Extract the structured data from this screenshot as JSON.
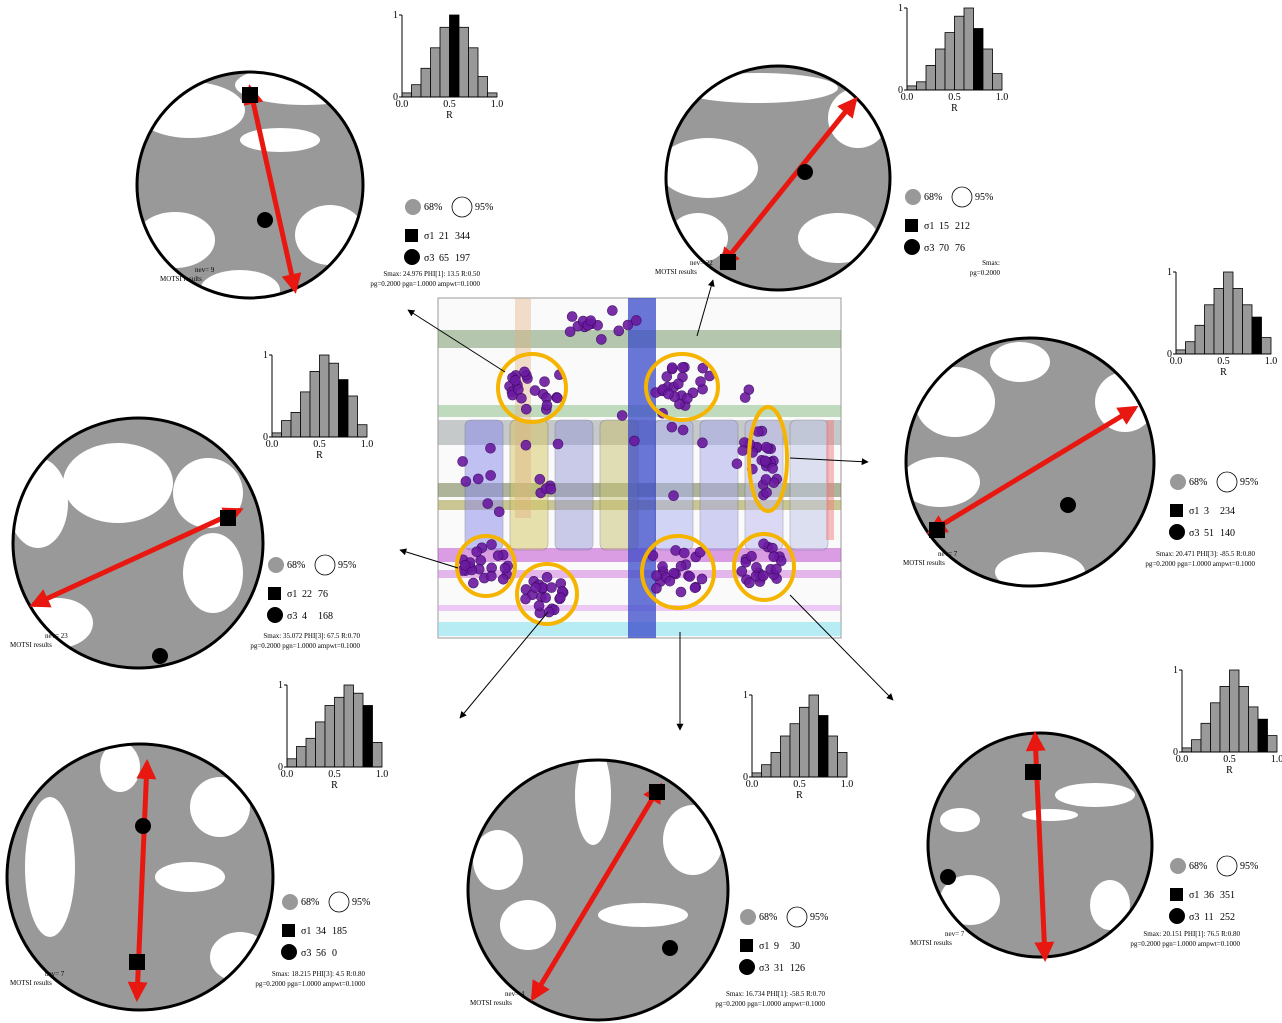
{
  "legend": [
    "68%",
    "95%"
  ],
  "histogram_axis": {
    "xticks": [
      "0.0",
      "0.5",
      "1.0"
    ],
    "xlabel": "R",
    "yticks": [
      0,
      1
    ]
  },
  "panels": [
    {
      "nev": "nev=    9",
      "source": "MOTSI results",
      "sigma1": {
        "symbol": "σ1",
        "plunge": 21,
        "trend": 344
      },
      "sigma3": {
        "symbol": "σ3",
        "plunge": 65,
        "trend": 197
      },
      "stats": "Smax:  24.976   PHI[1]:  13.5   R:0.50",
      "params": "pg=0.2000 pgn=1.0000 ampwt=0.1000",
      "histogram": {
        "counts": [
          0.05,
          0.15,
          0.35,
          0.6,
          0.85,
          1.0,
          0.85,
          0.6,
          0.25,
          0.05
        ],
        "highlight_bin": 5
      }
    },
    {
      "nev": "nev=    22",
      "source": "MOTSI results",
      "sigma1": {
        "symbol": "σ1",
        "plunge": 15,
        "trend": 212
      },
      "sigma3": {
        "symbol": "σ3",
        "plunge": 70,
        "trend": 76
      },
      "stats": "Smax:",
      "params": "pg=0.2000",
      "histogram": {
        "counts": [
          0.05,
          0.1,
          0.3,
          0.5,
          0.7,
          0.9,
          1.0,
          0.75,
          0.5,
          0.2
        ],
        "highlight_bin": 7
      }
    },
    {
      "nev": "nev=    7",
      "source": "MOTSI results",
      "sigma1": {
        "symbol": "σ1",
        "plunge": 3,
        "trend": 234
      },
      "sigma3": {
        "symbol": "σ3",
        "plunge": 51,
        "trend": 140
      },
      "stats": "Smax:  20.471   PHI[3]:  -85.5   R:0.80",
      "params": "pg=0.2000 pgn=1.0000 ampwt=0.1000",
      "histogram": {
        "counts": [
          0.05,
          0.15,
          0.35,
          0.6,
          0.8,
          1.0,
          0.8,
          0.6,
          0.45,
          0.2
        ],
        "highlight_bin": 8
      }
    },
    {
      "nev": "nev=    23",
      "source": "MOTSI results",
      "sigma1": {
        "symbol": "σ1",
        "plunge": 22,
        "trend": 76
      },
      "sigma3": {
        "symbol": "σ3",
        "plunge": 4,
        "trend": 168
      },
      "stats": "Smax:  35.072   PHI[3]:  67.5   R:0.70",
      "params": "pg=0.2000 pgn=1.0000 ampwt=0.1000",
      "histogram": {
        "counts": [
          0.05,
          0.2,
          0.3,
          0.55,
          0.8,
          1.0,
          0.9,
          0.7,
          0.5,
          0.15
        ],
        "highlight_bin": 7
      }
    },
    {
      "nev": "nev=    7",
      "source": "MOTSI results",
      "sigma1": {
        "symbol": "σ1",
        "plunge": 34,
        "trend": 185
      },
      "sigma3": {
        "symbol": "σ3",
        "plunge": 56,
        "trend": 0
      },
      "stats": "Smax:  18.215   PHI[3]:  4.5   R:0.80",
      "params": "pg=0.2000 pgn=1.0000 ampwt=0.1000",
      "histogram": {
        "counts": [
          0.1,
          0.25,
          0.35,
          0.55,
          0.75,
          0.85,
          1.0,
          0.9,
          0.75,
          0.3
        ],
        "highlight_bin": 8
      }
    },
    {
      "nev": "nev=    4",
      "source": "MOTSI results",
      "sigma1": {
        "symbol": "σ1",
        "plunge": 9,
        "trend": 30
      },
      "sigma3": {
        "symbol": "σ3",
        "plunge": 31,
        "trend": 126
      },
      "stats": "Smax:  16.734   PHI[1]:  -58.5   R:0.70",
      "params": "pg=0.2000 pgn=1.0000 ampwt=0.1000",
      "histogram": {
        "counts": [
          0.05,
          0.15,
          0.3,
          0.5,
          0.65,
          0.85,
          1.0,
          0.75,
          0.5,
          0.3
        ],
        "highlight_bin": 7
      }
    },
    {
      "nev": "nev=    7",
      "source": "MOTSI results",
      "sigma1": {
        "symbol": "σ1",
        "plunge": 36,
        "trend": 351
      },
      "sigma3": {
        "symbol": "σ3",
        "plunge": 11,
        "trend": 252
      },
      "stats": "Smax:  20.151   PHI[1]:  76.5   R:0.80",
      "params": "pg=0.2000 pgn=1.0000 ampwt=0.1000",
      "histogram": {
        "counts": [
          0.05,
          0.15,
          0.35,
          0.6,
          0.8,
          1.0,
          0.8,
          0.55,
          0.4,
          0.2
        ],
        "highlight_bin": 8
      }
    }
  ]
}
